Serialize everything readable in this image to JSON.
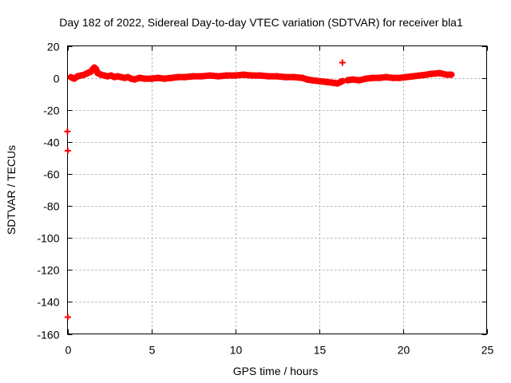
{
  "chart_data": {
    "type": "scatter",
    "title": "Day 182 of 2022, Sidereal Day-to-day VTEC variation (SDTVAR) for receiver bla1",
    "xlabel": "GPS time / hours",
    "ylabel": "SDTVAR / TECUs",
    "xlim": [
      0,
      25
    ],
    "ylim": [
      -160,
      20
    ],
    "xticks": [
      0,
      5,
      10,
      15,
      20,
      25
    ],
    "xtick_labels": [
      "0",
      "5",
      "10",
      "15",
      "20",
      "25"
    ],
    "yticks": [
      20,
      0,
      -20,
      -40,
      -60,
      -80,
      -100,
      -120,
      -140,
      -160
    ],
    "ytick_labels": [
      "20",
      "0",
      "-20",
      "-40",
      "-60",
      "-80",
      "-100",
      "-120",
      "-140",
      "-160"
    ],
    "grid": true,
    "marker": "plus",
    "series": [
      {
        "color": "#ff0000",
        "x": [
          0.0,
          0.02,
          0.02,
          0.2,
          0.4,
          0.6,
          0.8,
          1.0,
          1.2,
          1.4,
          1.6,
          1.7,
          1.8,
          1.9,
          2.0,
          2.2,
          2.4,
          2.6,
          2.8,
          3.0,
          3.2,
          3.4,
          3.6,
          3.8,
          4.0,
          4.3,
          4.6,
          5.0,
          5.4,
          5.8,
          6.2,
          6.6,
          7.0,
          7.5,
          8.0,
          8.5,
          9.0,
          9.5,
          10.0,
          10.5,
          11.0,
          11.5,
          12.0,
          12.5,
          13.0,
          13.5,
          14.0,
          14.3,
          14.6,
          15.0,
          15.4,
          15.8,
          16.1,
          16.4,
          16.4,
          16.7,
          17.0,
          17.4,
          17.8,
          18.2,
          18.6,
          19.0,
          19.4,
          19.8,
          20.2,
          20.6,
          21.0,
          21.4,
          21.7,
          22.2,
          22.6,
          22.9
        ],
        "y": [
          -33.5,
          -45.5,
          -149.5,
          0.5,
          -0.5,
          1.0,
          1.5,
          2.0,
          3.0,
          4.0,
          6.5,
          5.5,
          3.0,
          2.5,
          2.0,
          1.5,
          1.0,
          1.5,
          0.5,
          1.0,
          0.5,
          0.0,
          0.5,
          -0.5,
          -1.0,
          0.0,
          -0.5,
          -0.5,
          0.0,
          -0.5,
          0.0,
          0.5,
          0.5,
          1.0,
          1.0,
          1.5,
          1.0,
          1.5,
          1.5,
          2.0,
          1.5,
          1.5,
          1.0,
          1.0,
          0.5,
          0.5,
          0.0,
          -1.0,
          -1.5,
          -2.0,
          -2.5,
          -3.0,
          -3.5,
          -2.0,
          9.5,
          -1.5,
          -1.0,
          -1.5,
          -0.5,
          0.0,
          0.0,
          0.5,
          0.0,
          0.0,
          0.5,
          1.0,
          1.5,
          2.0,
          2.5,
          3.0,
          2.0,
          2.0
        ]
      }
    ]
  }
}
